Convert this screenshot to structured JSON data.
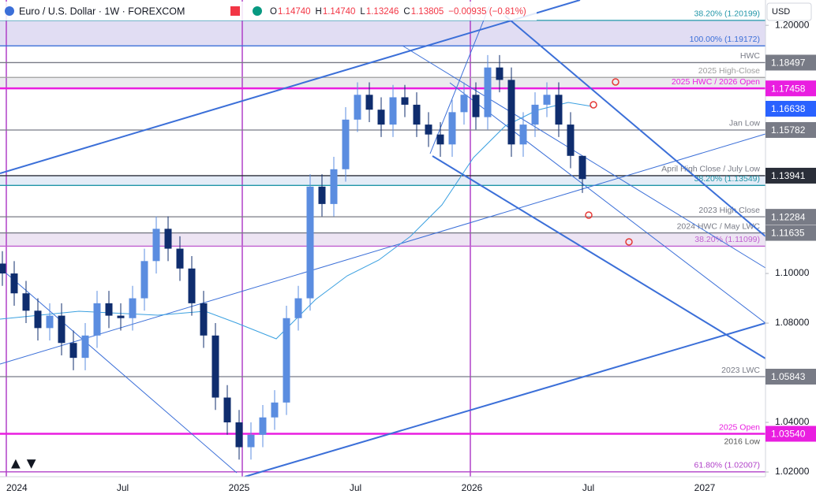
{
  "chart_data": {
    "type": "candlestick",
    "header": {
      "symbol": "Euro / U.S. Dollar · 1W · FOREXCOM",
      "ohlc": [
        {
          "k": "O",
          "v": "1.14740"
        },
        {
          "k": "H",
          "v": "1.14740"
        },
        {
          "k": "L",
          "v": "1.13246"
        },
        {
          "k": "C",
          "v": "1.13805"
        }
      ],
      "change": "−0.00935 (−0.81%)",
      "currency": "USD"
    },
    "x_labels": [
      "2024",
      "Jul",
      "2025",
      "Jul",
      "2026",
      "Jul",
      "2027"
    ],
    "ylim": [
      1.0181,
      1.2102
    ],
    "yticks": [
      {
        "value": 1.02,
        "label": "1.02000"
      },
      {
        "value": 1.04,
        "label": "1.04000"
      },
      {
        "value": 1.08,
        "label": "1.08000"
      },
      {
        "value": 1.1,
        "label": "1.10000"
      },
      {
        "value": 1.2,
        "label": "1.20000"
      }
    ],
    "up_color": "#5b8de0",
    "down_color": "#0f2d6e",
    "open": [
      1.104,
      1.1,
      1.092,
      1.085,
      1.078,
      1.083,
      1.072,
      1.066,
      1.075,
      1.088,
      1.083,
      1.082,
      1.09,
      1.105,
      1.118,
      1.11,
      1.102,
      1.088,
      1.075,
      1.05,
      1.04,
      1.03,
      1.035,
      1.042,
      1.048,
      1.082,
      1.09,
      1.135,
      1.128,
      1.142,
      1.162,
      1.172,
      1.166,
      1.16,
      1.171,
      1.168,
      1.16,
      1.156,
      1.152,
      1.165,
      1.172,
      1.163,
      1.183,
      1.178,
      1.152,
      1.16,
      1.168,
      1.172,
      1.16,
      1.1474
    ],
    "high": [
      1.109,
      1.105,
      1.097,
      1.09,
      1.088,
      1.088,
      1.077,
      1.08,
      1.093,
      1.093,
      1.088,
      1.095,
      1.11,
      1.123,
      1.123,
      1.115,
      1.107,
      1.093,
      1.08,
      1.055,
      1.045,
      1.04,
      1.047,
      1.053,
      1.087,
      1.095,
      1.14,
      1.14,
      1.147,
      1.167,
      1.177,
      1.177,
      1.171,
      1.176,
      1.176,
      1.173,
      1.165,
      1.161,
      1.17,
      1.177,
      1.177,
      1.188,
      1.188,
      1.183,
      1.165,
      1.173,
      1.177,
      1.177,
      1.165,
      1.1474
    ],
    "low": [
      1.095,
      1.087,
      1.08,
      1.073,
      1.073,
      1.067,
      1.061,
      1.061,
      1.07,
      1.078,
      1.077,
      1.077,
      1.085,
      1.1,
      1.105,
      1.097,
      1.083,
      1.07,
      1.045,
      1.035,
      1.025,
      1.025,
      1.03,
      1.037,
      1.043,
      1.077,
      1.085,
      1.123,
      1.123,
      1.137,
      1.157,
      1.161,
      1.155,
      1.155,
      1.163,
      1.155,
      1.151,
      1.147,
      1.147,
      1.16,
      1.158,
      1.158,
      1.173,
      1.147,
      1.147,
      1.155,
      1.163,
      1.155,
      1.1424,
      1.13246
    ],
    "close": [
      1.1,
      1.092,
      1.085,
      1.078,
      1.083,
      1.072,
      1.066,
      1.075,
      1.088,
      1.083,
      1.082,
      1.09,
      1.105,
      1.118,
      1.11,
      1.102,
      1.088,
      1.075,
      1.05,
      1.04,
      1.03,
      1.035,
      1.042,
      1.048,
      1.082,
      1.09,
      1.135,
      1.128,
      1.142,
      1.162,
      1.172,
      1.166,
      1.16,
      1.171,
      1.168,
      1.16,
      1.156,
      1.152,
      1.165,
      1.172,
      1.163,
      1.183,
      1.178,
      1.152,
      1.16,
      1.168,
      1.172,
      1.16,
      1.1474,
      1.13805
    ],
    "levels": [
      {
        "value": 1.20199,
        "label": "38.20% (1.20199)",
        "color": "#2196a8"
      },
      {
        "value": 1.19172,
        "label": "100.00% (1.19172)",
        "color": "#3b6fd8"
      },
      {
        "value": 1.18497,
        "label": "HWC",
        "color": "#787b86",
        "box": true
      },
      {
        "value": 1.179,
        "label": "2025 High-Close",
        "color": "#9e9e9e"
      },
      {
        "value": 1.17458,
        "label": "2025 HWC / 2026 Open",
        "color": "#e91ee0",
        "box": true
      },
      {
        "value": 1.16638,
        "color": "#2962ff",
        "box": true
      },
      {
        "value": 1.15782,
        "label": "Jan Low",
        "color": "#787b86",
        "box": true
      },
      {
        "value": 1.13941,
        "label": "April High Close / July Low",
        "color": "#2a2e39",
        "box": true
      },
      {
        "value": 1.13549,
        "label": "38.20% (1.13549)",
        "color": "#2196a8"
      },
      {
        "value": 1.12284,
        "label": "2023 High Close",
        "color": "#787b86",
        "box": true
      },
      {
        "value": 1.11635,
        "label": "2024 HWC / May LWC",
        "color": "#787b86",
        "box": true
      },
      {
        "value": 1.11099,
        "label": "38.20% (1.11099)",
        "color": "#c05fd0"
      },
      {
        "value": 1.05843,
        "label": "2023 LWC",
        "color": "#787b86",
        "box": true
      },
      {
        "value": 1.0354,
        "value_label": "1.03540",
        "label": "2025 Open",
        "sublabel": "2016 Low",
        "color": "#e91ee0",
        "box": true
      },
      {
        "value": 1.02007,
        "label": "61.80% (1.02007)",
        "color": "#b040c8"
      }
    ]
  }
}
